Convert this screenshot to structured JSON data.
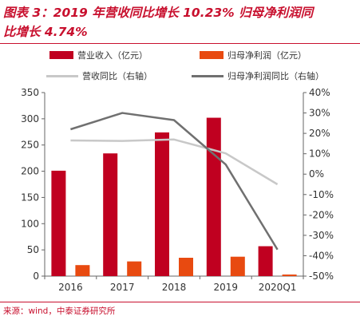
{
  "title_lines": [
    "图表 3：2019 年营收同比增长 10.23% 归母净利润同",
    "比增长 4.74%"
  ],
  "source": "来源：wind，中泰证券研究所",
  "colors": {
    "accent": "#c8102e",
    "revenue": "#c00020",
    "net_profit": "#e84a10",
    "revenue_yoy": "#c8c8c8",
    "net_profit_yoy": "#707070"
  },
  "chart_data": {
    "type": "bar",
    "categories": [
      "2016",
      "2017",
      "2018",
      "2019",
      "2020Q1"
    ],
    "series": [
      {
        "name": "营业收入（亿元）",
        "kind": "bar",
        "axis": "left",
        "values": [
          201,
          234,
          274,
          302,
          57
        ]
      },
      {
        "name": "归母净利润（亿元）",
        "kind": "bar",
        "axis": "left",
        "values": [
          21,
          28,
          35,
          37,
          3
        ]
      },
      {
        "name": "营收同比（右轴）",
        "kind": "line",
        "axis": "right",
        "values": [
          16.5,
          16.3,
          17,
          10.2,
          -5
        ]
      },
      {
        "name": "归母净利润同比（右轴）",
        "kind": "line",
        "axis": "right",
        "values": [
          22,
          30,
          26.5,
          4.7,
          -37
        ]
      }
    ],
    "y_left": {
      "min": 0,
      "max": 350,
      "step": 50,
      "ticks": [
        "0",
        "50",
        "100",
        "150",
        "200",
        "250",
        "300",
        "350"
      ]
    },
    "y_right": {
      "min": -50,
      "max": 40,
      "step": 10,
      "ticks": [
        "-50%",
        "-40%",
        "-30%",
        "-20%",
        "-10%",
        "0%",
        "10%",
        "20%",
        "30%",
        "40%"
      ]
    },
    "grid": false,
    "legend_position": "top"
  }
}
